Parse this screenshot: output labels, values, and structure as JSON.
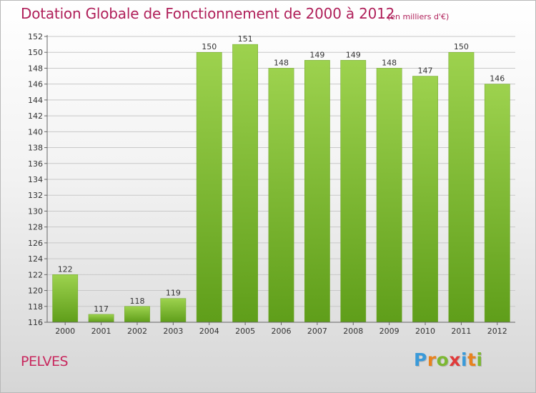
{
  "chart_data": {
    "type": "bar",
    "title": "Dotation Globale de Fonctionnement de 2000 à 2012",
    "unit": "(en milliers d'€)",
    "categories": [
      "2000",
      "2001",
      "2002",
      "2003",
      "2004",
      "2005",
      "2006",
      "2007",
      "2008",
      "2009",
      "2010",
      "2011",
      "2012"
    ],
    "values": [
      122,
      117,
      118,
      119,
      150,
      151,
      148,
      149,
      149,
      148,
      147,
      150,
      146
    ],
    "ylim": [
      116,
      152
    ],
    "ytick_step": 2,
    "grid": true,
    "bar_color": "#8cc63f"
  },
  "commune": "PELVES",
  "logo": {
    "letters": [
      "P",
      "r",
      "o",
      "x",
      "i",
      "t",
      "i"
    ],
    "colors": [
      "#3a9ad9",
      "#e8821e",
      "#7cb832",
      "#e03a3a",
      "#3a9ad9",
      "#e8821e",
      "#7cb832"
    ]
  }
}
